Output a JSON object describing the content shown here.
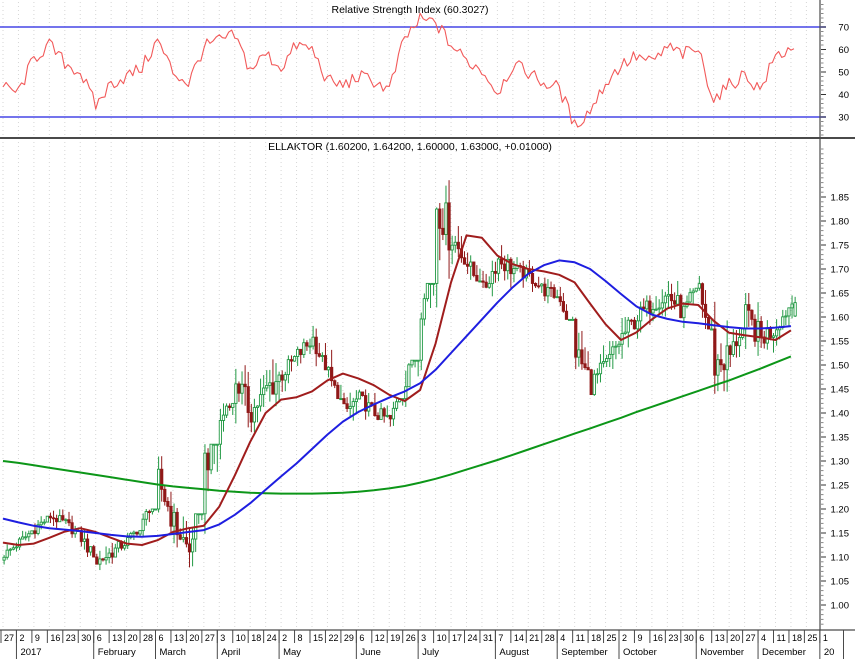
{
  "window_title": "ELLAKTOR weekly technical analysis chart",
  "panes": {
    "rsi_title": "Relative Strength Index (60.3027)",
    "price_title": "ELLAKTOR (1.60200, 1.64200, 1.60000, 1.63000, +0.01000)"
  },
  "colors": {
    "background": "#ffffff",
    "grid": "#d6d6d6",
    "rsi_line": "#f25a5a",
    "band_line": "#4646e6",
    "candle_up": "#229944",
    "candle_down": "#901818",
    "ma_short": "#a01d1d",
    "ma_medium": "#1e1ee0",
    "ma_long": "#0c9618",
    "axis": "#4a4a4a",
    "text": "#000000"
  },
  "chart_data": [
    {
      "type": "line",
      "name": "relative-strength-index",
      "title": "Relative Strength Index (60.3027)",
      "last_value": 60.3027,
      "overbought_level": 70,
      "oversold_level": 30,
      "y_ticks": [
        "70",
        "60",
        "50",
        "40",
        "30"
      ],
      "y_tick_values": [
        70,
        60,
        50,
        40,
        30
      ],
      "ylim": [
        21,
        82
      ],
      "legend_position": "top-center",
      "grid": "vertical-dotted",
      "weekly_values": [
        43,
        41,
        56,
        62,
        54,
        50,
        35,
        45,
        48,
        52,
        64,
        50,
        45,
        61,
        64,
        66,
        51,
        58,
        52,
        62,
        60,
        46,
        44,
        48,
        46,
        42,
        65,
        73,
        72,
        62,
        55,
        51,
        41,
        53,
        50,
        45,
        43,
        26,
        33,
        45,
        53,
        57,
        54,
        61,
        58,
        60,
        38,
        44,
        49,
        42,
        57,
        60.3,
        null,
        null
      ]
    },
    {
      "type": "candlestick",
      "name": "ellaktor-price",
      "title": "ELLAKTOR (1.60200, 1.64200, 1.60000, 1.63000, +0.01000)",
      "quote": {
        "open": "1.60200",
        "high": "1.64200",
        "low": "1.60000",
        "close": "1.63000",
        "change": "+0.01000"
      },
      "y_ticks": [
        "1.85",
        "1.80",
        "1.75",
        "1.70",
        "1.65",
        "1.60",
        "1.55",
        "1.50",
        "1.45",
        "1.40",
        "1.35",
        "1.30",
        "1.25",
        "1.20",
        "1.15",
        "1.10",
        "1.05",
        "1.00"
      ],
      "y_tick_values": [
        1.85,
        1.8,
        1.75,
        1.7,
        1.65,
        1.6,
        1.55,
        1.5,
        1.45,
        1.4,
        1.35,
        1.3,
        1.25,
        1.2,
        1.15,
        1.1,
        1.05,
        1.0
      ],
      "ylim": [
        0.95,
        1.97
      ],
      "grid": "vertical-dotted",
      "weekly": [
        {
          "close": 1.105,
          "high": 1.13,
          "low": 1.08
        },
        {
          "close": 1.13,
          "high": 1.155,
          "low": 1.09
        },
        {
          "close": 1.16,
          "high": 1.185,
          "low": 1.12
        },
        {
          "close": 1.185,
          "high": 1.21,
          "low": 1.15
        },
        {
          "close": 1.17,
          "high": 1.2,
          "low": 1.14
        },
        {
          "close": 1.14,
          "high": 1.18,
          "low": 1.1
        },
        {
          "close": 1.09,
          "high": 1.14,
          "low": 1.05
        },
        {
          "close": 1.11,
          "high": 1.135,
          "low": 1.06
        },
        {
          "close": 1.135,
          "high": 1.155,
          "low": 1.1
        },
        {
          "close": 1.17,
          "high": 1.2,
          "low": 1.12
        },
        {
          "close": 1.26,
          "high": 1.31,
          "low": 1.15
        },
        {
          "close": 1.17,
          "high": 1.28,
          "low": 1.12
        },
        {
          "close": 1.11,
          "high": 1.19,
          "low": 1.05
        },
        {
          "close": 1.3,
          "high": 1.335,
          "low": 1.1
        },
        {
          "close": 1.38,
          "high": 1.42,
          "low": 1.29
        },
        {
          "close": 1.47,
          "high": 1.53,
          "low": 1.37
        },
        {
          "close": 1.4,
          "high": 1.49,
          "low": 1.36
        },
        {
          "close": 1.45,
          "high": 1.555,
          "low": 1.38
        },
        {
          "close": 1.48,
          "high": 1.52,
          "low": 1.42
        },
        {
          "close": 1.52,
          "high": 1.555,
          "low": 1.45
        },
        {
          "close": 1.555,
          "high": 1.585,
          "low": 1.49
        },
        {
          "close": 1.475,
          "high": 1.57,
          "low": 1.43
        },
        {
          "close": 1.4,
          "high": 1.49,
          "low": 1.365
        },
        {
          "close": 1.43,
          "high": 1.465,
          "low": 1.38
        },
        {
          "close": 1.4,
          "high": 1.455,
          "low": 1.37
        },
        {
          "close": 1.385,
          "high": 1.43,
          "low": 1.355
        },
        {
          "close": 1.475,
          "high": 1.51,
          "low": 1.37
        },
        {
          "close": 1.63,
          "high": 1.67,
          "low": 1.47
        },
        {
          "close": 1.84,
          "high": 1.885,
          "low": 1.62
        },
        {
          "close": 1.765,
          "high": 1.865,
          "low": 1.71
        },
        {
          "close": 1.71,
          "high": 1.78,
          "low": 1.675
        },
        {
          "close": 1.655,
          "high": 1.72,
          "low": 1.615
        },
        {
          "close": 1.72,
          "high": 1.755,
          "low": 1.63
        },
        {
          "close": 1.7,
          "high": 1.735,
          "low": 1.66
        },
        {
          "close": 1.685,
          "high": 1.72,
          "low": 1.65
        },
        {
          "close": 1.655,
          "high": 1.7,
          "low": 1.62
        },
        {
          "close": 1.64,
          "high": 1.675,
          "low": 1.595
        },
        {
          "close": 1.53,
          "high": 1.645,
          "low": 1.49
        },
        {
          "close": 1.46,
          "high": 1.545,
          "low": 1.415
        },
        {
          "close": 1.5,
          "high": 1.55,
          "low": 1.42
        },
        {
          "close": 1.56,
          "high": 1.6,
          "low": 1.48
        },
        {
          "close": 1.6,
          "high": 1.645,
          "low": 1.54
        },
        {
          "close": 1.63,
          "high": 1.675,
          "low": 1.565
        },
        {
          "close": 1.645,
          "high": 1.685,
          "low": 1.55
        },
        {
          "close": 1.61,
          "high": 1.66,
          "low": 1.55
        },
        {
          "close": 1.665,
          "high": 1.72,
          "low": 1.575
        },
        {
          "close": 1.5,
          "high": 1.66,
          "low": 1.44
        },
        {
          "close": 1.52,
          "high": 1.575,
          "low": 1.44
        },
        {
          "close": 1.6,
          "high": 1.65,
          "low": 1.49
        },
        {
          "close": 1.555,
          "high": 1.635,
          "low": 1.505
        },
        {
          "close": 1.58,
          "high": 1.62,
          "low": 1.54
        },
        {
          "close": 1.63,
          "high": 1.645,
          "low": 1.55
        },
        null,
        null
      ],
      "overlays": [
        {
          "name": "moving-average-short",
          "color_key": "ma_short",
          "weekly_values": [
            1.13,
            1.125,
            1.128,
            1.14,
            1.153,
            1.16,
            1.152,
            1.14,
            1.128,
            1.125,
            1.135,
            1.152,
            1.16,
            1.165,
            1.205,
            1.27,
            1.34,
            1.4,
            1.428,
            1.433,
            1.445,
            1.468,
            1.482,
            1.472,
            1.458,
            1.438,
            1.425,
            1.448,
            1.545,
            1.672,
            1.77,
            1.765,
            1.728,
            1.71,
            1.7,
            1.695,
            1.688,
            1.672,
            1.628,
            1.585,
            1.552,
            1.568,
            1.595,
            1.618,
            1.628,
            1.625,
            1.592,
            1.567,
            1.562,
            1.558,
            1.552,
            1.572,
            null,
            null
          ]
        },
        {
          "name": "moving-average-medium",
          "color_key": "ma_medium",
          "weekly_values": [
            1.18,
            1.172,
            1.165,
            1.16,
            1.157,
            1.154,
            1.15,
            1.146,
            1.143,
            1.142,
            1.144,
            1.148,
            1.152,
            1.156,
            1.168,
            1.188,
            1.212,
            1.24,
            1.268,
            1.295,
            1.325,
            1.355,
            1.382,
            1.402,
            1.418,
            1.432,
            1.445,
            1.462,
            1.49,
            1.525,
            1.56,
            1.595,
            1.63,
            1.662,
            1.69,
            1.708,
            1.718,
            1.714,
            1.7,
            1.675,
            1.648,
            1.622,
            1.605,
            1.596,
            1.59,
            1.587,
            1.583,
            1.579,
            1.576,
            1.576,
            1.578,
            1.581,
            null,
            null
          ]
        },
        {
          "name": "moving-average-long",
          "color_key": "ma_long",
          "weekly_values": [
            1.3,
            1.296,
            1.291,
            1.286,
            1.281,
            1.276,
            1.271,
            1.266,
            1.261,
            1.256,
            1.251,
            1.247,
            1.244,
            1.241,
            1.238,
            1.236,
            1.234,
            1.233,
            1.232,
            1.232,
            1.232,
            1.233,
            1.234,
            1.236,
            1.239,
            1.243,
            1.248,
            1.255,
            1.263,
            1.272,
            1.282,
            1.292,
            1.302,
            1.313,
            1.324,
            1.335,
            1.346,
            1.357,
            1.368,
            1.379,
            1.39,
            1.402,
            1.413,
            1.424,
            1.435,
            1.446,
            1.457,
            1.468,
            1.48,
            1.492,
            1.505,
            1.518,
            null,
            null
          ]
        }
      ]
    }
  ],
  "x_axis": {
    "week_ticks": [
      "27",
      "2",
      "9",
      "16",
      "23",
      "30",
      "6",
      "13",
      "20",
      "28",
      "6",
      "13",
      "20",
      "27",
      "3",
      "10",
      "18",
      "24",
      "2",
      "8",
      "15",
      "22",
      "29",
      "6",
      "12",
      "19",
      "26",
      "3",
      "10",
      "17",
      "24",
      "31",
      "7",
      "14",
      "21",
      "28",
      "4",
      "11",
      "18",
      "25",
      "2",
      "9",
      "16",
      "23",
      "30",
      "6",
      "13",
      "20",
      "27",
      "4",
      "11",
      "18",
      "25",
      "1"
    ],
    "month_labels": [
      {
        "label": "2017",
        "tick": 1
      },
      {
        "label": "February",
        "tick": 6
      },
      {
        "label": "March",
        "tick": 10
      },
      {
        "label": "April",
        "tick": 14
      },
      {
        "label": "May",
        "tick": 18
      },
      {
        "label": "June",
        "tick": 23
      },
      {
        "label": "July",
        "tick": 27
      },
      {
        "label": "August",
        "tick": 32
      },
      {
        "label": "September",
        "tick": 36
      },
      {
        "label": "October",
        "tick": 40
      },
      {
        "label": "November",
        "tick": 45
      },
      {
        "label": "December",
        "tick": 49
      },
      {
        "label": "20",
        "tick": 53
      }
    ]
  }
}
